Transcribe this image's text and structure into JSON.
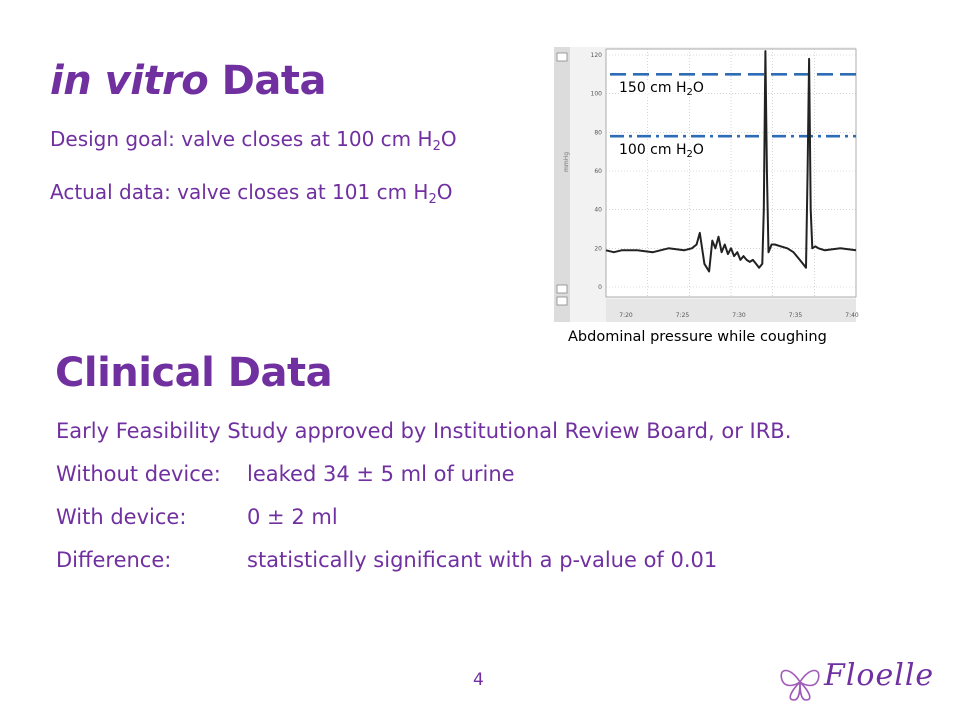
{
  "slide": {
    "title_italic": "in vitro",
    "title_rest": " Data",
    "design_goal_prefix": "Design goal: valve closes at 100 cm H",
    "design_goal_sub": "2",
    "design_goal_suffix": "O",
    "actual_prefix": "Actual data: valve closes at 101 cm H",
    "actual_sub": "2",
    "actual_suffix": "O",
    "clinical_title": "Clinical Data",
    "clinical_intro": "Early Feasibility Study approved by Institutional Review Board, or IRB.",
    "rows": [
      {
        "label": "Without device:",
        "value_a": "leaked 34 ",
        "pm": "±",
        "value_b": " 5 ml of urine"
      },
      {
        "label": "With device:",
        "value_a": "0 ",
        "pm": "±",
        "value_b": " 2 ml"
      },
      {
        "label": "Difference:",
        "value_a": "statistically significant with a p-value of 0.01",
        "pm": "",
        "value_b": ""
      }
    ],
    "page_number": "4",
    "logo_text": "Floelle"
  },
  "chart_caption": "Abdominal pressure while coughing",
  "chart_data": {
    "type": "line",
    "title": "",
    "xlabel": "",
    "ylabel": "",
    "ylim": [
      0,
      120
    ],
    "y_ticks": [
      "0",
      "20",
      "40",
      "60",
      "80",
      "100",
      "120"
    ],
    "x_ticks": [
      "7:20",
      "7:25",
      "7:30",
      "7:35",
      "7:40"
    ],
    "reference_lines": [
      {
        "label_prefix": "150 cm H",
        "label_sub": "2",
        "label_suffix": "O",
        "value": 110,
        "style": "dashed",
        "color": "#2e6cb5"
      },
      {
        "label_prefix": "100 cm H",
        "label_sub": "2",
        "label_suffix": "O",
        "value": 78,
        "style": "dash-dot",
        "color": "#2e6cb5"
      }
    ],
    "series": [
      {
        "x": [
          0,
          5,
          10,
          20,
          30,
          40,
          50,
          55,
          58,
          60,
          63,
          66,
          68,
          70,
          72,
          74,
          76,
          78,
          80,
          82,
          84,
          86,
          88,
          90,
          92,
          94,
          96,
          98,
          100,
          101,
          102,
          103,
          104,
          106,
          108,
          112,
          116,
          120,
          124,
          126,
          128,
          129,
          130,
          131,
          132,
          134,
          136,
          140,
          150,
          160
        ],
        "y": [
          19,
          18,
          19,
          19,
          18,
          20,
          19,
          20,
          22,
          28,
          12,
          8,
          24,
          20,
          26,
          18,
          22,
          17,
          20,
          16,
          18,
          14,
          16,
          14,
          13,
          14,
          12,
          10,
          12,
          40,
          122,
          60,
          18,
          22,
          22,
          21,
          20,
          18,
          14,
          12,
          10,
          60,
          118,
          40,
          20,
          21,
          20,
          19,
          20,
          19
        ]
      }
    ],
    "grid": true,
    "legend": "none"
  },
  "colors": {
    "accent": "#7030a0",
    "ref_line": "#2e6cb5",
    "trace": "#222222"
  }
}
